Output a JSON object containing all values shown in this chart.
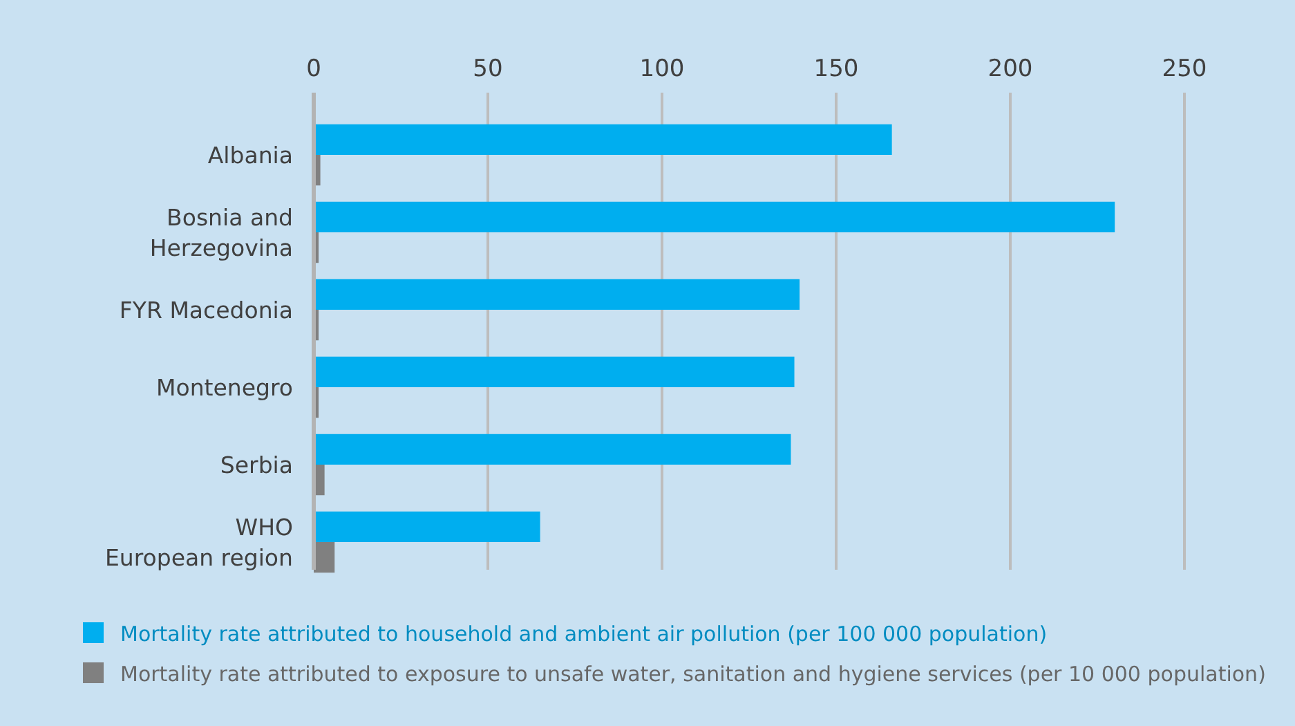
{
  "chart_data": {
    "type": "bar",
    "orientation": "horizontal",
    "categories": [
      "Albania",
      "Bosnia and\nHerzegovina",
      "FYR Macedonia",
      "Montenegro",
      "Serbia",
      "WHO\nEuropean region"
    ],
    "series": [
      {
        "name": "Mortality rate attributed to household and ambient air pollution (per 100 000 population)",
        "color": "#00aeef",
        "values": [
          166,
          230,
          139.5,
          138,
          137,
          65
        ]
      },
      {
        "name": "Mortality rate attributed to exposure to unsafe water, sanitation and hygiene services (per 10 000 population)",
        "color": "#808080",
        "values": [
          1.9,
          1.4,
          1.4,
          1.4,
          3.1,
          6
        ]
      }
    ],
    "xlim": [
      0,
      250
    ],
    "xticks": [
      0,
      50,
      100,
      150,
      200,
      250
    ],
    "grid": "x",
    "legend": "bottom"
  }
}
